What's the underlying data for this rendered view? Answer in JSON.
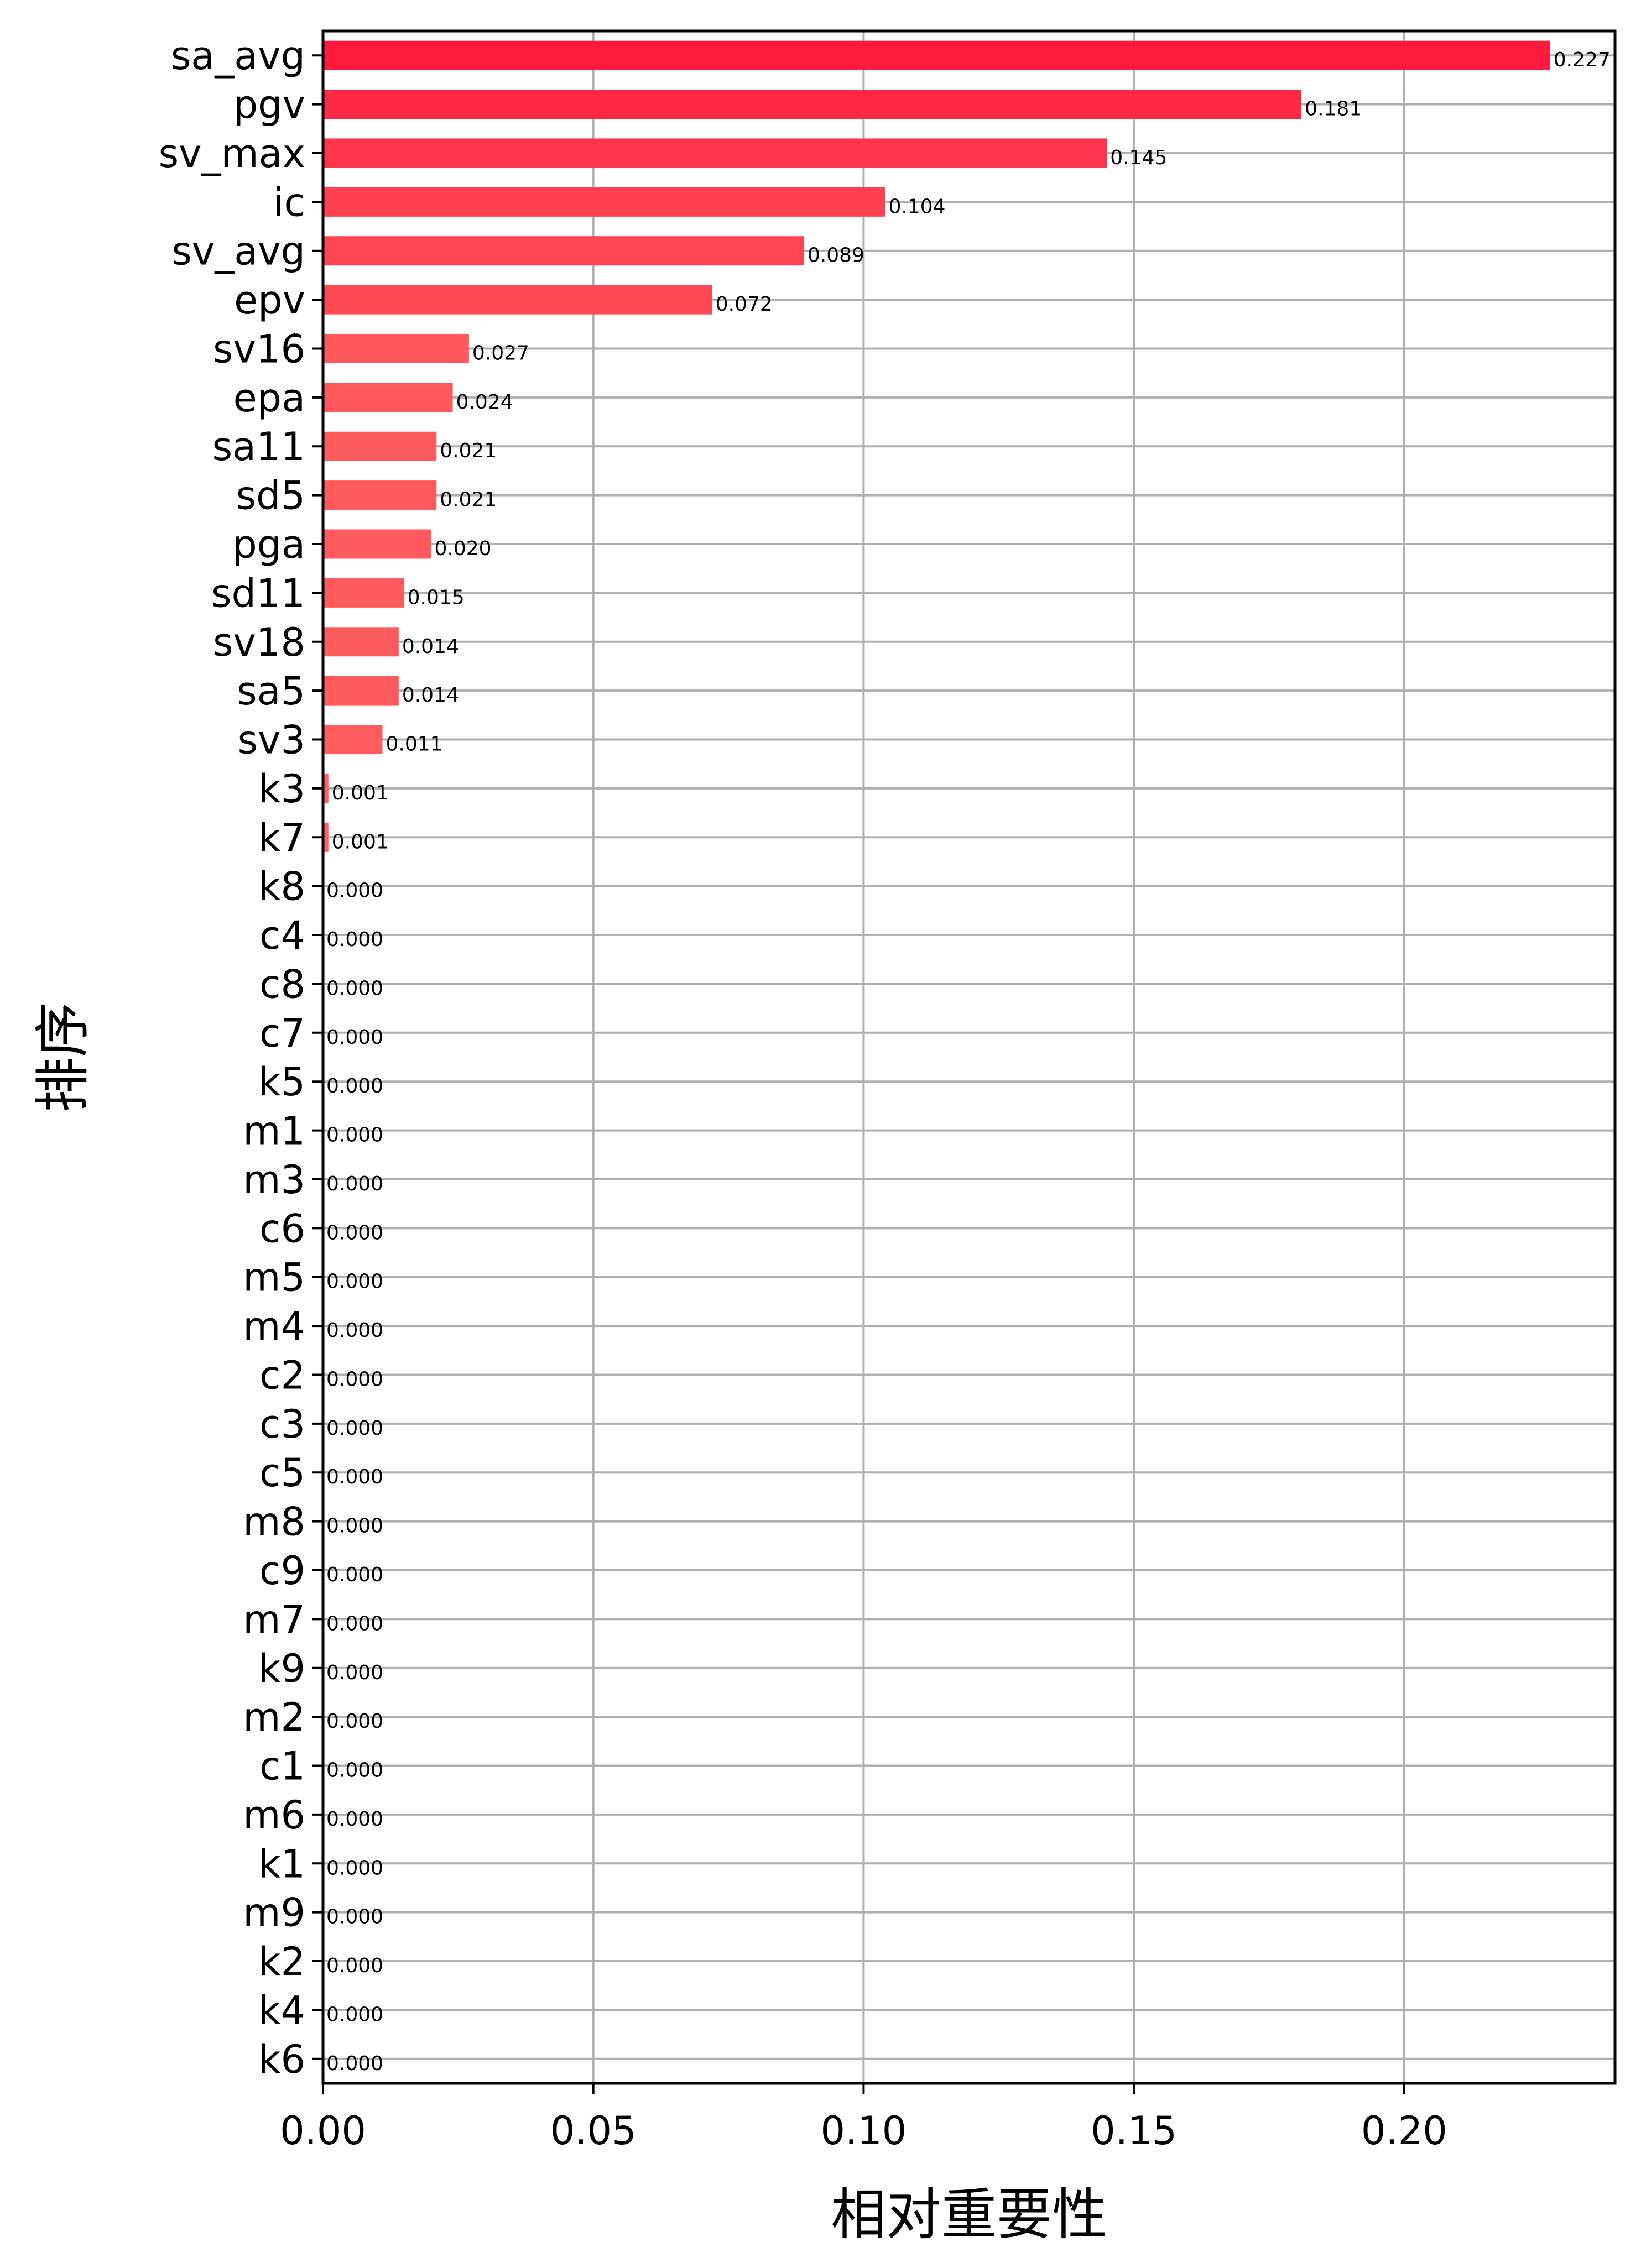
{
  "chart_data": {
    "type": "bar",
    "orientation": "horizontal",
    "xlabel": "相对重要性",
    "ylabel": "排序",
    "xlim": [
      0,
      0.239
    ],
    "xticks": [
      0.0,
      0.05,
      0.1,
      0.15,
      0.2
    ],
    "xtick_labels": [
      "0.00",
      "0.05",
      "0.10",
      "0.15",
      "0.20"
    ],
    "grid": true,
    "color_range": [
      "#ff1a40",
      "#ff6060"
    ],
    "categories": [
      "sa_avg",
      "pgv",
      "sv_max",
      "ic",
      "sv_avg",
      "epv",
      "sv16",
      "epa",
      "sa11",
      "sd5",
      "pga",
      "sd11",
      "sv18",
      "sa5",
      "sv3",
      "k3",
      "k7",
      "k8",
      "c4",
      "c8",
      "c7",
      "k5",
      "m1",
      "m3",
      "c6",
      "m5",
      "m4",
      "c2",
      "c3",
      "c5",
      "m8",
      "c9",
      "m7",
      "k9",
      "m2",
      "c1",
      "m6",
      "k1",
      "m9",
      "k2",
      "k4",
      "k6"
    ],
    "values": [
      0.227,
      0.181,
      0.145,
      0.104,
      0.089,
      0.072,
      0.027,
      0.024,
      0.021,
      0.021,
      0.02,
      0.015,
      0.014,
      0.014,
      0.011,
      0.001,
      0.001,
      0.0,
      0.0,
      0.0,
      0.0,
      0.0,
      0.0,
      0.0,
      0.0,
      0.0,
      0.0,
      0.0,
      0.0,
      0.0,
      0.0,
      0.0,
      0.0,
      0.0,
      0.0,
      0.0,
      0.0,
      0.0,
      0.0,
      0.0,
      0.0,
      0.0
    ],
    "value_labels": [
      "0.227",
      "0.181",
      "0.145",
      "0.104",
      "0.089",
      "0.072",
      "0.027",
      "0.024",
      "0.021",
      "0.021",
      "0.020",
      "0.015",
      "0.014",
      "0.014",
      "0.011",
      "0.001",
      "0.001",
      "0.000",
      "0.000",
      "0.000",
      "0.000",
      "0.000",
      "0.000",
      "0.000",
      "0.000",
      "0.000",
      "0.000",
      "0.000",
      "0.000",
      "0.000",
      "0.000",
      "0.000",
      "0.000",
      "0.000",
      "0.000",
      "0.000",
      "0.000",
      "0.000",
      "0.000",
      "0.000",
      "0.000",
      "0.000"
    ]
  }
}
